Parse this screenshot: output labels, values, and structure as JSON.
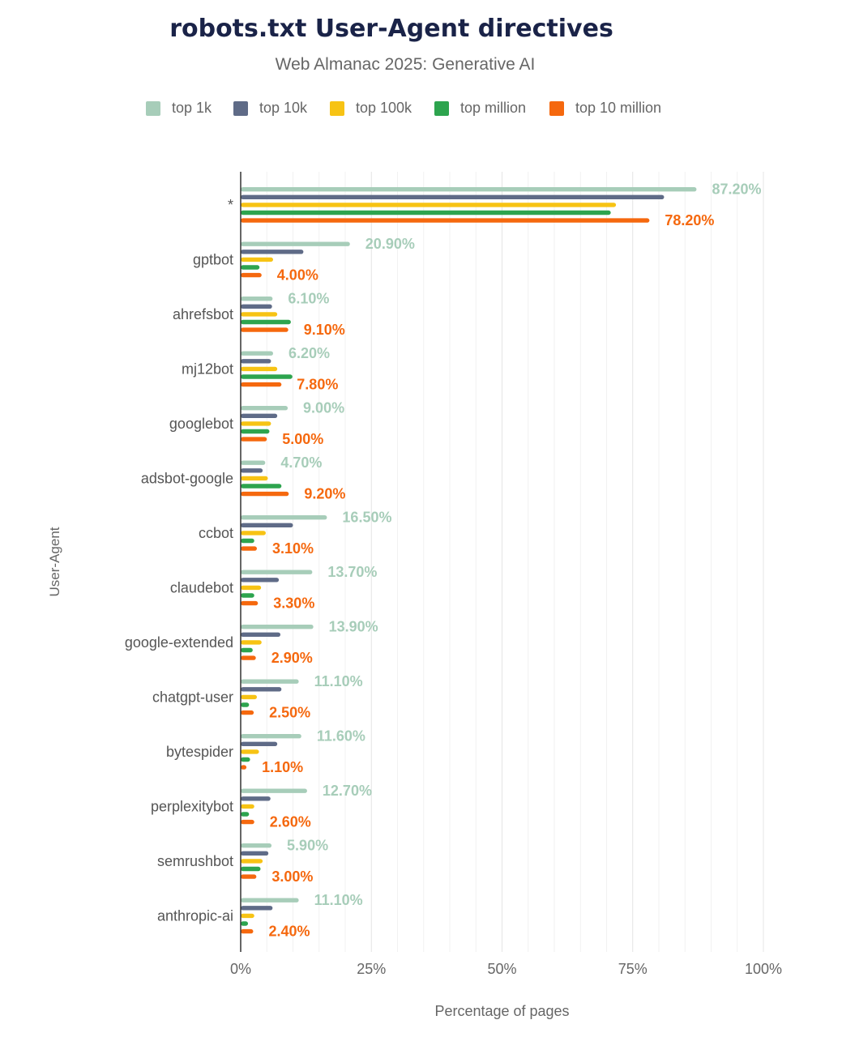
{
  "chart_data": {
    "type": "bar",
    "orientation": "horizontal",
    "title": "robots.txt User-Agent directives",
    "subtitle": "Web Almanac 2025: Generative AI",
    "xlabel": "Percentage of pages",
    "ylabel": "User-Agent",
    "xlim": [
      0,
      100
    ],
    "x_ticks": [
      "0%",
      "25%",
      "50%",
      "75%",
      "100%"
    ],
    "x_tick_values": [
      0,
      25,
      50,
      75,
      100
    ],
    "grid": true,
    "legend_position": "top",
    "categories": [
      "*",
      "gptbot",
      "ahrefsbot",
      "mj12bot",
      "googlebot",
      "adsbot-google",
      "ccbot",
      "claudebot",
      "google-extended",
      "chatgpt-user",
      "bytespider",
      "perplexitybot",
      "semrushbot",
      "anthropic-ai"
    ],
    "series": [
      {
        "name": "top 1k",
        "color": "#a7cdb9",
        "values": [
          87.2,
          20.9,
          6.1,
          6.2,
          9.0,
          4.7,
          16.5,
          13.7,
          13.9,
          11.1,
          11.6,
          12.7,
          5.9,
          11.1
        ]
      },
      {
        "name": "top 10k",
        "color": "#5f6b87",
        "values": [
          81.0,
          12.0,
          6.0,
          5.8,
          7.0,
          4.2,
          10.0,
          7.3,
          7.6,
          7.8,
          7.0,
          5.7,
          5.3,
          6.1
        ]
      },
      {
        "name": "top 100k",
        "color": "#f7c314",
        "values": [
          71.8,
          6.2,
          7.0,
          7.0,
          5.8,
          5.2,
          4.8,
          3.9,
          4.0,
          3.1,
          3.5,
          2.6,
          4.2,
          2.6
        ]
      },
      {
        "name": "top million",
        "color": "#2da44e",
        "values": [
          70.8,
          3.6,
          9.6,
          9.9,
          5.5,
          7.8,
          2.6,
          2.6,
          2.3,
          1.6,
          1.8,
          1.6,
          3.8,
          1.4
        ]
      },
      {
        "name": "top 10 million",
        "color": "#f5680e",
        "values": [
          78.2,
          4.0,
          9.1,
          7.8,
          5.0,
          9.2,
          3.1,
          3.3,
          2.9,
          2.5,
          1.1,
          2.6,
          3.0,
          2.4
        ]
      }
    ],
    "data_labels": {
      "top 1k": [
        "87.20%",
        "20.90%",
        "6.10%",
        "6.20%",
        "9.00%",
        "4.70%",
        "16.50%",
        "13.70%",
        "13.90%",
        "11.10%",
        "11.60%",
        "12.70%",
        "5.90%",
        "11.10%"
      ],
      "top 10 million": [
        "78.20%",
        "4.00%",
        "9.10%",
        "7.80%",
        "5.00%",
        "9.20%",
        "3.10%",
        "3.30%",
        "2.90%",
        "2.50%",
        "1.10%",
        "2.60%",
        "3.00%",
        "2.40%"
      ]
    }
  }
}
